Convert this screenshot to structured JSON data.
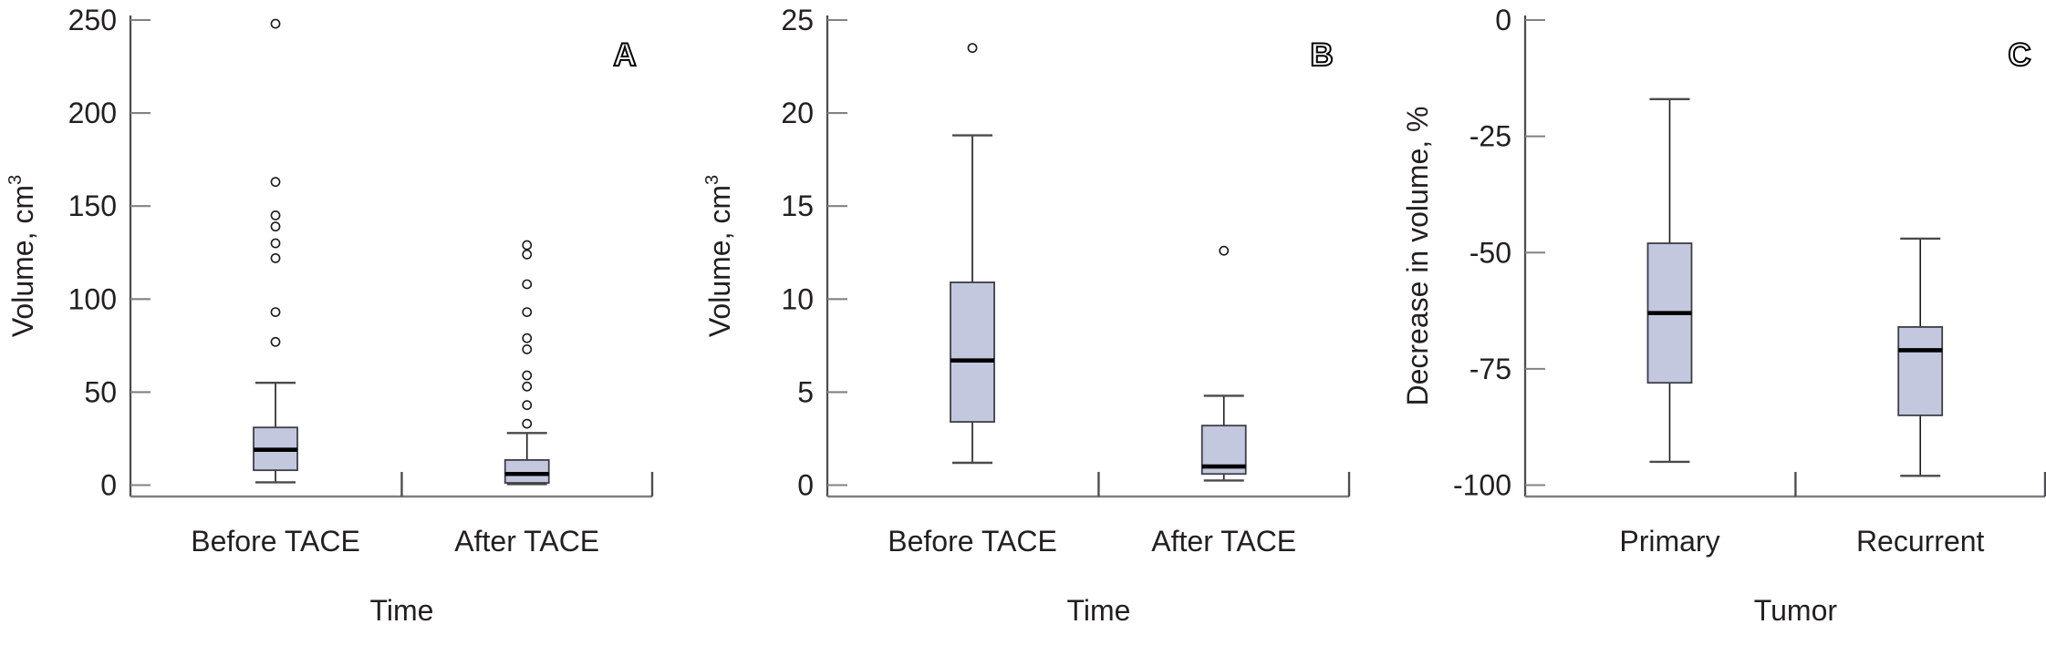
{
  "figure": {
    "background": "#ffffff",
    "text_color": "#231f20",
    "box_fill": "#c3c8de",
    "box_border": "#3d3e47",
    "median_color": "#000000",
    "whisker_color": "#1a1a1a",
    "cap_color": "#4a4a4a",
    "y_axis_color": "#4d4e52",
    "x_axis_color": "#7d7f82",
    "y_tick_color": "#808285",
    "x_tick_color": "#4d4e52",
    "outlier_stroke": "#1a1a1a",
    "outlier_fill": "#ffffff"
  },
  "chart_data": [
    {
      "type": "box",
      "panel_label": "A",
      "xlabel": "Time",
      "ylabel": "Volume, cm",
      "ylabel_superscript": "3",
      "ylim": [
        0,
        250
      ],
      "yticks": [
        0,
        50,
        100,
        150,
        200,
        250
      ],
      "categories": [
        "Before TACE",
        "After TACE"
      ],
      "series": [
        {
          "category": "Before TACE",
          "whisker_low": 1.5,
          "q1": 8,
          "median": 19,
          "q3": 31,
          "whisker_high": 55,
          "outliers": [
            77,
            93,
            122,
            130,
            139,
            145,
            163,
            248
          ]
        },
        {
          "category": "After TACE",
          "whisker_low": 0.5,
          "q1": 1.2,
          "median": 6,
          "q3": 13.5,
          "whisker_high": 28,
          "outliers": [
            33,
            43,
            53,
            59,
            73,
            79,
            93,
            108,
            124,
            129
          ]
        }
      ]
    },
    {
      "type": "box",
      "panel_label": "B",
      "xlabel": "Time",
      "ylabel": "Volume, cm",
      "ylabel_superscript": "3",
      "ylim": [
        0,
        25
      ],
      "yticks": [
        0,
        5,
        10,
        15,
        20,
        25
      ],
      "categories": [
        "Before TACE",
        "After TACE"
      ],
      "series": [
        {
          "category": "Before TACE",
          "whisker_low": 1.2,
          "q1": 3.4,
          "median": 6.7,
          "q3": 10.9,
          "whisker_high": 18.8,
          "outliers": [
            23.5
          ]
        },
        {
          "category": "After TACE",
          "whisker_low": 0.25,
          "q1": 0.6,
          "median": 1.0,
          "q3": 3.2,
          "whisker_high": 4.8,
          "outliers": [
            12.6
          ]
        }
      ]
    },
    {
      "type": "box",
      "panel_label": "C",
      "xlabel": "Tumor",
      "ylabel": "Decrease in volume, %",
      "ylabel_superscript": "",
      "ylim": [
        -100,
        0
      ],
      "yticks": [
        -100,
        -75,
        -50,
        -25,
        0
      ],
      "categories": [
        "Primary",
        "Recurrent"
      ],
      "series": [
        {
          "category": "Primary",
          "whisker_low": -95,
          "q1": -78,
          "median": -63,
          "q3": -48,
          "whisker_high": -17,
          "outliers": []
        },
        {
          "category": "Recurrent",
          "whisker_low": -98,
          "q1": -85,
          "median": -71,
          "q3": -66,
          "whisker_high": -47,
          "outliers": []
        }
      ]
    }
  ]
}
